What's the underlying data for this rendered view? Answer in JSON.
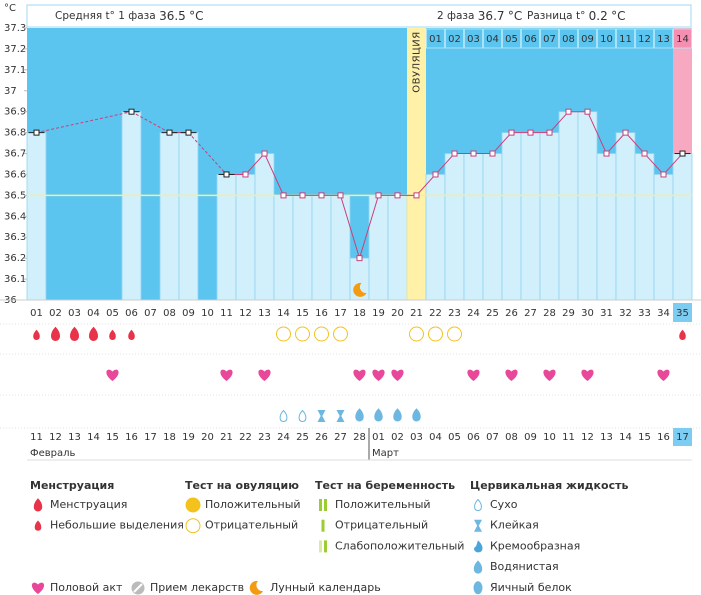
{
  "header": {
    "phase1_label": "Средняя t° 1 фаза",
    "phase1_avg": 36.5,
    "phase2_label": "2 фаза",
    "phase2_avg": 36.7,
    "diff_label": "Разница t°",
    "diff": 0.2,
    "unit": "°C"
  },
  "chart_data": {
    "type": "line",
    "ylabel": "°C",
    "ylim": [
      36,
      37.3
    ],
    "yticks": [
      36,
      36.1,
      36.2,
      36.3,
      36.4,
      36.5,
      36.6,
      36.7,
      36.8,
      36.9,
      37,
      37.1,
      37.2,
      37.3
    ],
    "coverline": 36.5,
    "cycle_days": [
      "01",
      "02",
      "03",
      "04",
      "05",
      "06",
      "07",
      "08",
      "09",
      "10",
      "11",
      "12",
      "13",
      "14",
      "15",
      "16",
      "17",
      "18",
      "19",
      "20",
      "21",
      "22",
      "23",
      "24",
      "25",
      "26",
      "27",
      "28",
      "29",
      "30",
      "31",
      "32",
      "33",
      "34",
      "35"
    ],
    "series": [
      {
        "color": "#c8407a",
        "values": [
          36.8,
          null,
          null,
          null,
          null,
          36.9,
          null,
          36.8,
          36.8,
          null,
          36.6,
          36.6,
          36.7,
          36.5,
          36.5,
          36.5,
          36.5,
          36.2,
          36.5,
          36.5,
          36.5,
          36.6,
          36.7,
          36.7,
          36.7,
          36.8,
          36.8,
          36.8,
          36.9,
          36.9,
          36.7,
          36.8,
          36.7,
          36.6,
          36.7
        ]
      }
    ],
    "ovulation_label": "ОВУЛЯЦИЯ",
    "ovulation_day": 21,
    "phase2_start": 22,
    "phase2_days": [
      "01",
      "02",
      "03",
      "04",
      "05",
      "06",
      "07",
      "08",
      "09",
      "10",
      "11",
      "12",
      "13",
      "14"
    ],
    "menstruation": {
      "heavy": [
        2,
        3,
        4
      ],
      "light": [
        1,
        5,
        6,
        35
      ]
    },
    "ovulation_test": {
      "negative": [
        14,
        15,
        16,
        17,
        21,
        22,
        23
      ]
    },
    "intercourse": [
      5,
      11,
      13,
      18,
      19,
      20,
      24,
      26,
      28,
      30,
      34
    ],
    "cervical": {
      "dry": [
        14,
        15
      ],
      "sticky": [
        16,
        17
      ],
      "watery": [
        18,
        19,
        20,
        21
      ]
    },
    "moon": [
      18
    ],
    "dates": [
      "11",
      "12",
      "13",
      "14",
      "15",
      "16",
      "17",
      "18",
      "19",
      "20",
      "21",
      "22",
      "23",
      "24",
      "25",
      "26",
      "27",
      "28",
      "01",
      "02",
      "03",
      "04",
      "05",
      "06",
      "07",
      "08",
      "09",
      "10",
      "11",
      "12",
      "13",
      "14",
      "15",
      "16",
      "17"
    ],
    "weekend_days": [
      4,
      5,
      11,
      12,
      18,
      19,
      25,
      26,
      32,
      33
    ],
    "months": [
      {
        "label": "Февраль",
        "day": 1
      },
      {
        "label": "Март",
        "day": 19
      }
    ]
  },
  "legend": {
    "menstruation": {
      "title": "Менструация",
      "items": [
        "Менструация",
        "Небольшие выделения"
      ]
    },
    "ovulation_test": {
      "title": "Тест на овуляцию",
      "items": [
        "Положительный",
        "Отрицательный"
      ]
    },
    "pregnancy_test": {
      "title": "Тест на беременность",
      "items": [
        "Положительный",
        "Отрицательный",
        "Слабоположительный"
      ]
    },
    "cervical": {
      "title": "Цервикальная жидкость",
      "items": [
        "Сухо",
        "Клейкая",
        "Кремообразная",
        "Водянистая",
        "Яичный белок"
      ]
    },
    "other": [
      "Половой акт",
      "Прием лекарств",
      "Лунный календарь"
    ]
  }
}
